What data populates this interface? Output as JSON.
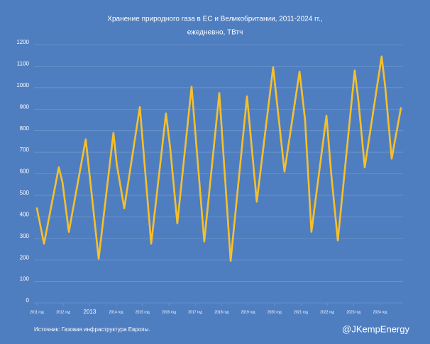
{
  "chart_data": {
    "type": "line",
    "title": "Хранение природного газа в ЕС и Великобритании, 2011-2024 гг.,",
    "subtitle": "ежедневно, ТВтч",
    "source": "Источник: Газовая инфраструктура Европы.",
    "credit": "@JKempEnergy",
    "x": [
      2011.0,
      2011.27,
      2011.83,
      2011.97,
      2012.21,
      2012.85,
      2013.34,
      2013.9,
      2014.03,
      2014.31,
      2014.9,
      2015.33,
      2015.89,
      2016.05,
      2016.32,
      2016.86,
      2017.34,
      2017.91,
      2018.34,
      2018.96,
      2019.33,
      2019.95,
      2020.38,
      2020.95,
      2021.16,
      2021.4,
      2021.97,
      2022.15,
      2022.4,
      2023.04,
      2023.18,
      2023.42,
      2024.06,
      2024.2,
      2024.44,
      2024.79
    ],
    "series": [
      {
        "color": "#f6c02c",
        "values": [
          440,
          275,
          630,
          560,
          330,
          760,
          205,
          790,
          640,
          440,
          910,
          275,
          880,
          720,
          370,
          1005,
          285,
          975,
          195,
          960,
          470,
          1095,
          610,
          1075,
          850,
          330,
          870,
          600,
          290,
          1080,
          940,
          630,
          1145,
          1000,
          670,
          905
        ]
      }
    ],
    "xlim": [
      2011,
      2025
    ],
    "xticks": [
      {
        "value": 2011,
        "label": "2011 год"
      },
      {
        "value": 2012,
        "label": "2012 год"
      },
      2013,
      {
        "value": 2014,
        "label": "2014 год"
      },
      {
        "value": 2015,
        "label": "2015 год"
      },
      {
        "value": 2016,
        "label": "2016 год"
      },
      {
        "value": 2017,
        "label": "2017 год"
      },
      {
        "value": 2018,
        "label": "2018 год"
      },
      {
        "value": 2019,
        "label": "2019 год"
      },
      {
        "value": 2020,
        "label": "2020 год"
      },
      {
        "value": 2021,
        "label": "2021 год"
      },
      {
        "value": 2022,
        "label": "2022 год"
      },
      {
        "value": 2023,
        "label": "2023 год"
      },
      {
        "value": 2024,
        "label": "2024 год"
      }
    ],
    "ylim": [
      0,
      1200
    ],
    "yticks": [
      0,
      100,
      200,
      300,
      400,
      500,
      600,
      700,
      800,
      900,
      1000,
      1100,
      1200
    ],
    "grid": true
  }
}
